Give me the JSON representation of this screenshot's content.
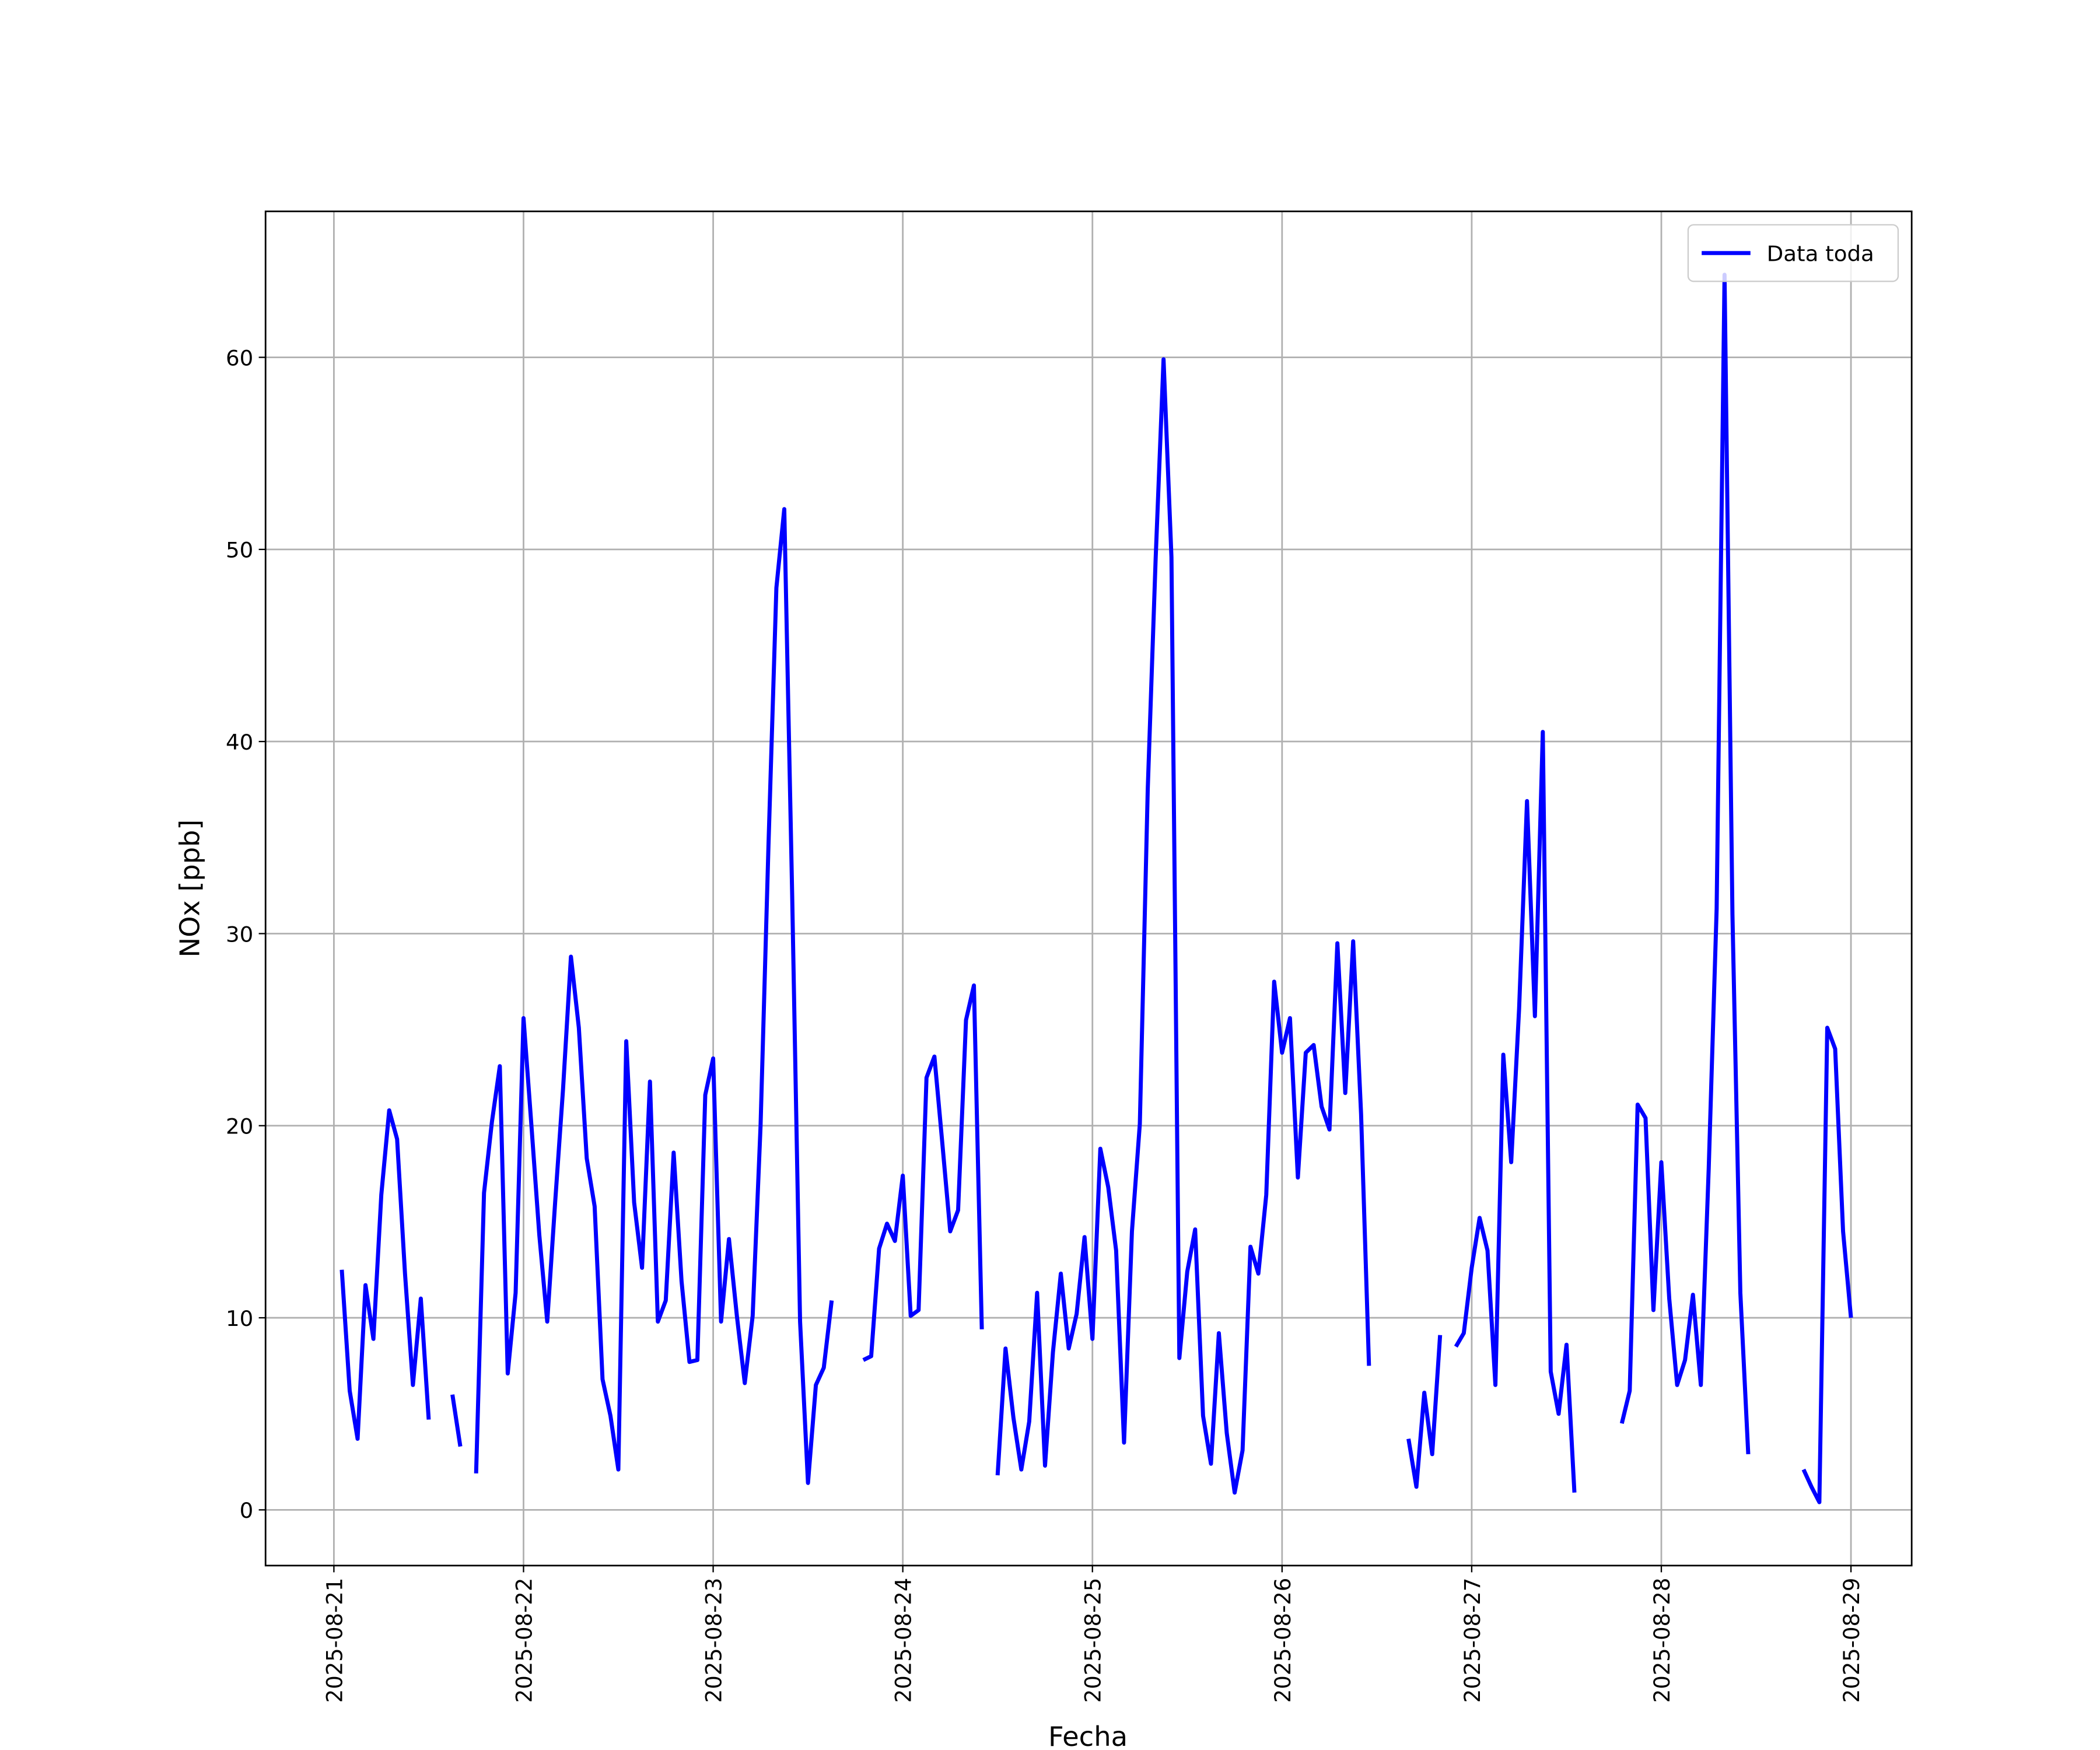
{
  "chart_data": {
    "type": "line",
    "xlabel": "Fecha",
    "ylabel": "NOx [ppb]",
    "grid": true,
    "legend": "upper right",
    "xlim": [
      "2025-08-20 15:21",
      "2025-08-29 07:41"
    ],
    "ylim": [
      -2.9,
      67.6
    ],
    "yticks": [
      0,
      10,
      20,
      30,
      40,
      50,
      60
    ],
    "xticks": [
      "2025-08-21",
      "2025-08-22",
      "2025-08-23",
      "2025-08-24",
      "2025-08-25",
      "2025-08-26",
      "2025-08-27",
      "2025-08-28",
      "2025-08-29"
    ],
    "x": [
      "2025-08-21 01:00",
      "2025-08-21 02:00",
      "2025-08-21 03:00",
      "2025-08-21 04:00",
      "2025-08-21 05:00",
      "2025-08-21 06:00",
      "2025-08-21 07:00",
      "2025-08-21 08:00",
      "2025-08-21 09:00",
      "2025-08-21 10:00",
      "2025-08-21 11:00",
      "2025-08-21 12:00",
      "2025-08-21 13:00",
      "2025-08-21 14:00",
      "2025-08-21 15:00",
      "2025-08-21 16:00",
      "2025-08-21 17:00",
      "2025-08-21 18:00",
      "2025-08-21 19:00",
      "2025-08-21 20:00",
      "2025-08-21 21:00",
      "2025-08-21 22:00",
      "2025-08-21 23:00",
      "2025-08-22 00:00",
      "2025-08-22 01:00",
      "2025-08-22 02:00",
      "2025-08-22 03:00",
      "2025-08-22 04:00",
      "2025-08-22 05:00",
      "2025-08-22 06:00",
      "2025-08-22 07:00",
      "2025-08-22 08:00",
      "2025-08-22 09:00",
      "2025-08-22 10:00",
      "2025-08-22 11:00",
      "2025-08-22 12:00",
      "2025-08-22 13:00",
      "2025-08-22 14:00",
      "2025-08-22 15:00",
      "2025-08-22 16:00",
      "2025-08-22 17:00",
      "2025-08-22 18:00",
      "2025-08-22 19:00",
      "2025-08-22 20:00",
      "2025-08-22 21:00",
      "2025-08-22 22:00",
      "2025-08-22 23:00",
      "2025-08-23 00:00",
      "2025-08-23 01:00",
      "2025-08-23 02:00",
      "2025-08-23 03:00",
      "2025-08-23 04:00",
      "2025-08-23 05:00",
      "2025-08-23 06:00",
      "2025-08-23 07:00",
      "2025-08-23 08:00",
      "2025-08-23 09:00",
      "2025-08-23 10:00",
      "2025-08-23 11:00",
      "2025-08-23 12:00",
      "2025-08-23 13:00",
      "2025-08-23 14:00",
      "2025-08-23 15:00",
      "2025-08-23 16:00",
      "2025-08-23 17:00",
      "2025-08-23 18:00",
      "2025-08-23 19:00",
      "2025-08-23 20:00",
      "2025-08-23 21:00",
      "2025-08-23 22:00",
      "2025-08-23 23:00",
      "2025-08-24 00:00",
      "2025-08-24 01:00",
      "2025-08-24 02:00",
      "2025-08-24 03:00",
      "2025-08-24 04:00",
      "2025-08-24 05:00",
      "2025-08-24 06:00",
      "2025-08-24 07:00",
      "2025-08-24 08:00",
      "2025-08-24 09:00",
      "2025-08-24 10:00",
      "2025-08-24 11:00",
      "2025-08-24 12:00",
      "2025-08-24 13:00",
      "2025-08-24 14:00",
      "2025-08-24 15:00",
      "2025-08-24 16:00",
      "2025-08-24 17:00",
      "2025-08-24 18:00",
      "2025-08-24 19:00",
      "2025-08-24 20:00",
      "2025-08-24 21:00",
      "2025-08-24 22:00",
      "2025-08-24 23:00",
      "2025-08-25 00:00",
      "2025-08-25 01:00",
      "2025-08-25 02:00",
      "2025-08-25 03:00",
      "2025-08-25 04:00",
      "2025-08-25 05:00",
      "2025-08-25 06:00",
      "2025-08-25 07:00",
      "2025-08-25 08:00",
      "2025-08-25 09:00",
      "2025-08-25 10:00",
      "2025-08-25 11:00",
      "2025-08-25 12:00",
      "2025-08-25 13:00",
      "2025-08-25 14:00",
      "2025-08-25 15:00",
      "2025-08-25 16:00",
      "2025-08-25 17:00",
      "2025-08-25 18:00",
      "2025-08-25 19:00",
      "2025-08-25 20:00",
      "2025-08-25 21:00",
      "2025-08-25 22:00",
      "2025-08-25 23:00",
      "2025-08-26 00:00",
      "2025-08-26 01:00",
      "2025-08-26 02:00",
      "2025-08-26 03:00",
      "2025-08-26 04:00",
      "2025-08-26 05:00",
      "2025-08-26 06:00",
      "2025-08-26 07:00",
      "2025-08-26 08:00",
      "2025-08-26 09:00",
      "2025-08-26 10:00",
      "2025-08-26 11:00",
      "2025-08-26 12:00",
      "2025-08-26 13:00",
      "2025-08-26 14:00",
      "2025-08-26 15:00",
      "2025-08-26 16:00",
      "2025-08-26 17:00",
      "2025-08-26 18:00",
      "2025-08-26 19:00",
      "2025-08-26 20:00",
      "2025-08-26 21:00",
      "2025-08-26 22:00",
      "2025-08-26 23:00",
      "2025-08-27 00:00",
      "2025-08-27 01:00",
      "2025-08-27 02:00",
      "2025-08-27 03:00",
      "2025-08-27 04:00",
      "2025-08-27 05:00",
      "2025-08-27 06:00",
      "2025-08-27 07:00",
      "2025-08-27 08:00",
      "2025-08-27 09:00",
      "2025-08-27 10:00",
      "2025-08-27 11:00",
      "2025-08-27 12:00",
      "2025-08-27 13:00",
      "2025-08-27 14:00",
      "2025-08-27 15:00",
      "2025-08-27 16:00",
      "2025-08-27 17:00",
      "2025-08-27 18:00",
      "2025-08-27 19:00",
      "2025-08-27 20:00",
      "2025-08-27 21:00",
      "2025-08-27 22:00",
      "2025-08-27 23:00",
      "2025-08-28 00:00",
      "2025-08-28 01:00",
      "2025-08-28 02:00",
      "2025-08-28 03:00",
      "2025-08-28 04:00",
      "2025-08-28 05:00",
      "2025-08-28 06:00",
      "2025-08-28 07:00",
      "2025-08-28 08:00",
      "2025-08-28 09:00",
      "2025-08-28 10:00",
      "2025-08-28 11:00",
      "2025-08-28 12:00",
      "2025-08-28 13:00",
      "2025-08-28 14:00",
      "2025-08-28 15:00",
      "2025-08-28 16:00",
      "2025-08-28 17:00",
      "2025-08-28 18:00",
      "2025-08-28 19:00",
      "2025-08-28 20:00",
      "2025-08-28 21:00",
      "2025-08-28 22:00",
      "2025-08-28 23:00",
      "2025-08-29 00:00"
    ],
    "series": [
      {
        "name": "Data toda",
        "color": "#0000ff",
        "values": [
          12.5,
          6.2,
          3.7,
          11.7,
          8.9,
          16.4,
          20.8,
          19.3,
          12.3,
          6.5,
          11.0,
          4.7,
          null,
          null,
          6.0,
          3.3,
          null,
          1.9,
          16.5,
          20.2,
          23.1,
          7.1,
          11.3,
          25.6,
          20.0,
          14.3,
          9.8,
          16.0,
          21.9,
          28.8,
          25.1,
          18.3,
          15.8,
          6.8,
          4.9,
          2.1,
          24.4,
          16.0,
          12.6,
          22.3,
          9.8,
          10.9,
          18.6,
          11.9,
          7.7,
          7.8,
          21.6,
          23.5,
          9.8,
          14.1,
          10.1,
          6.6,
          10.1,
          20.0,
          34.6,
          48.0,
          52.1,
          32.0,
          9.8,
          1.4,
          6.5,
          7.4,
          10.9,
          null,
          null,
          null,
          7.8,
          8.0,
          13.6,
          14.9,
          14.0,
          17.4,
          10.1,
          10.4,
          22.5,
          23.6,
          19.1,
          14.5,
          15.6,
          25.5,
          27.3,
          9.4,
          null,
          1.8,
          8.4,
          4.8,
          2.1,
          4.6,
          11.3,
          2.3,
          8.2,
          12.3,
          8.4,
          10.2,
          14.2,
          8.9,
          18.8,
          16.8,
          13.5,
          3.5,
          14.5,
          20.1,
          37.5,
          49.5,
          59.9,
          49.6,
          7.9,
          12.4,
          14.6,
          4.9,
          2.4,
          9.2,
          4.0,
          0.9,
          3.1,
          13.7,
          12.3,
          16.4,
          27.5,
          23.8,
          25.6,
          17.3,
          23.8,
          24.2,
          21.0,
          19.8,
          29.5,
          21.7,
          29.6,
          20.6,
          7.5,
          null,
          null,
          null,
          null,
          3.7,
          1.2,
          6.1,
          2.9,
          9.1,
          null,
          8.5,
          9.2,
          12.6,
          15.2,
          13.5,
          6.5,
          23.7,
          18.1,
          26.1,
          36.9,
          25.7,
          40.5,
          7.2,
          5.0,
          8.6,
          0.9,
          null,
          null,
          null,
          null,
          null,
          4.5,
          6.2,
          21.1,
          20.4,
          10.4,
          18.1,
          11.0,
          6.5,
          7.8,
          11.2,
          6.5,
          17.8,
          31.3,
          64.3,
          31.0,
          11.3,
          2.9,
          null,
          null,
          null,
          null,
          null,
          null,
          2.1,
          1.2,
          0.4,
          25.1,
          24.0,
          14.5,
          10.0
        ]
      }
    ]
  }
}
